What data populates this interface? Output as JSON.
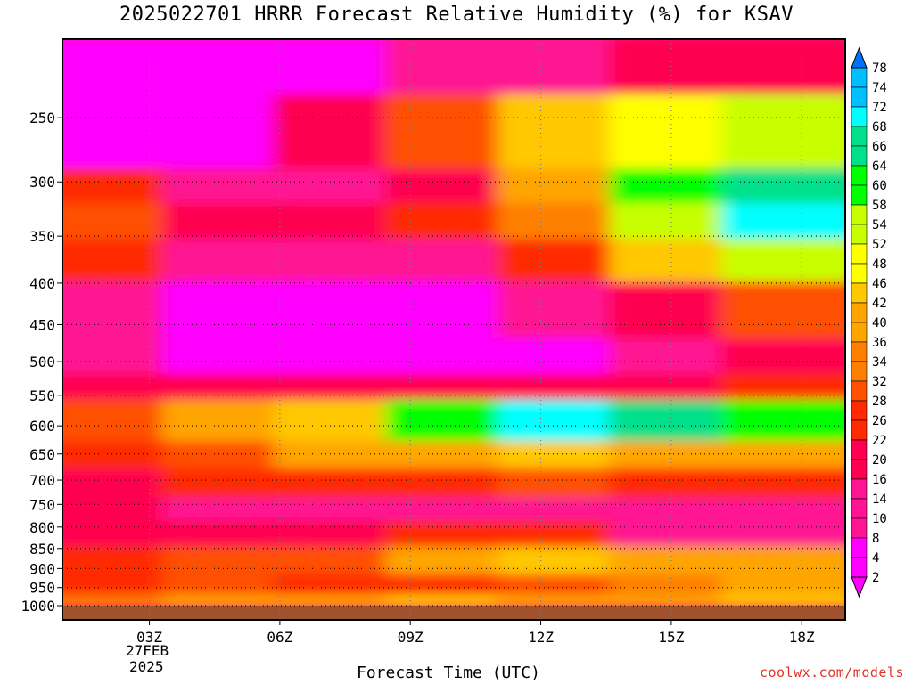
{
  "title": "2025022701 HRRR Forecast Relative Humidity (%) for KSAV",
  "credit": "coolwx.com/models",
  "colors": {
    "credit": "#e0342b",
    "ground": "#a0522d",
    "scale": [
      "#ff00ff",
      "#ff1493",
      "#ff0050",
      "#ff2a00",
      "#ff5000",
      "#ff8000",
      "#ffa500",
      "#ffc800",
      "#ffff00",
      "#c8ff00",
      "#00ff00",
      "#00e08a",
      "#00ffff",
      "#00bfff",
      "#0070ff"
    ]
  },
  "chart_data": {
    "type": "heatmap",
    "title": "2025022701 HRRR Forecast Relative Humidity (%) for KSAV",
    "xlabel": "Forecast Time (UTC)",
    "ylabel": "",
    "x_ticks": [
      "03Z",
      "06Z",
      "09Z",
      "12Z",
      "15Z",
      "18Z"
    ],
    "x_tick_hours": [
      3,
      6,
      9,
      12,
      15,
      18
    ],
    "x_range_hours": [
      1,
      19
    ],
    "date_label": [
      "27FEB",
      "2025"
    ],
    "y_ticks": [
      250,
      300,
      350,
      400,
      450,
      500,
      550,
      600,
      650,
      700,
      750,
      800,
      850,
      900,
      950,
      1000
    ],
    "y_range_hpa": [
      200,
      1000
    ],
    "y_scale": "log",
    "grid": true,
    "colorbar": {
      "labels": [
        "78",
        "74",
        "72",
        "68",
        "66",
        "64",
        "60",
        "58",
        "54",
        "52",
        "48",
        "46",
        "42",
        "40",
        "36",
        "34",
        "32",
        "28",
        "26",
        "22",
        "20",
        "16",
        "14",
        "10",
        "8",
        "4",
        "2"
      ],
      "values": [
        78,
        74,
        72,
        68,
        66,
        64,
        60,
        58,
        54,
        52,
        48,
        46,
        42,
        40,
        36,
        34,
        32,
        28,
        26,
        22,
        20,
        16,
        14,
        10,
        8,
        4,
        2
      ],
      "placement": "right"
    },
    "rh_bands": [
      {
        "p_top": 200,
        "p_bot": 235,
        "values": [
          2,
          4,
          6,
          8,
          12,
          16,
          20
        ]
      },
      {
        "p_top": 235,
        "p_bot": 290,
        "values": [
          4,
          6,
          16,
          30,
          42,
          48,
          56
        ]
      },
      {
        "p_top": 290,
        "p_bot": 320,
        "values": [
          26,
          14,
          12,
          18,
          36,
          58,
          64
        ]
      },
      {
        "p_top": 320,
        "p_bot": 355,
        "values": [
          28,
          20,
          18,
          24,
          32,
          54,
          70
        ]
      },
      {
        "p_top": 355,
        "p_bot": 400,
        "values": [
          22,
          14,
          10,
          14,
          26,
          44,
          52
        ]
      },
      {
        "p_top": 400,
        "p_bot": 470,
        "values": [
          10,
          6,
          4,
          6,
          8,
          16,
          28
        ]
      },
      {
        "p_top": 470,
        "p_bot": 520,
        "values": [
          8,
          6,
          4,
          4,
          4,
          8,
          18
        ]
      },
      {
        "p_top": 520,
        "p_bot": 560,
        "values": [
          20,
          18,
          16,
          18,
          18,
          20,
          26
        ]
      },
      {
        "p_top": 560,
        "p_bot": 630,
        "values": [
          28,
          36,
          42,
          62,
          70,
          64,
          58
        ]
      },
      {
        "p_top": 630,
        "p_bot": 680,
        "values": [
          26,
          30,
          36,
          40,
          42,
          40,
          38
        ]
      },
      {
        "p_top": 680,
        "p_bot": 740,
        "values": [
          20,
          22,
          24,
          26,
          28,
          26,
          24
        ]
      },
      {
        "p_top": 740,
        "p_bot": 790,
        "values": [
          16,
          14,
          14,
          14,
          14,
          10,
          8
        ]
      },
      {
        "p_top": 790,
        "p_bot": 850,
        "values": [
          20,
          18,
          20,
          24,
          26,
          14,
          12
        ]
      },
      {
        "p_top": 850,
        "p_bot": 920,
        "values": [
          26,
          28,
          30,
          36,
          42,
          36,
          40
        ]
      },
      {
        "p_top": 920,
        "p_bot": 975,
        "values": [
          26,
          28,
          24,
          26,
          30,
          34,
          36
        ]
      },
      {
        "p_top": 975,
        "p_bot": 1000,
        "values": [
          32,
          36,
          40,
          42,
          38,
          40,
          42
        ]
      }
    ]
  }
}
